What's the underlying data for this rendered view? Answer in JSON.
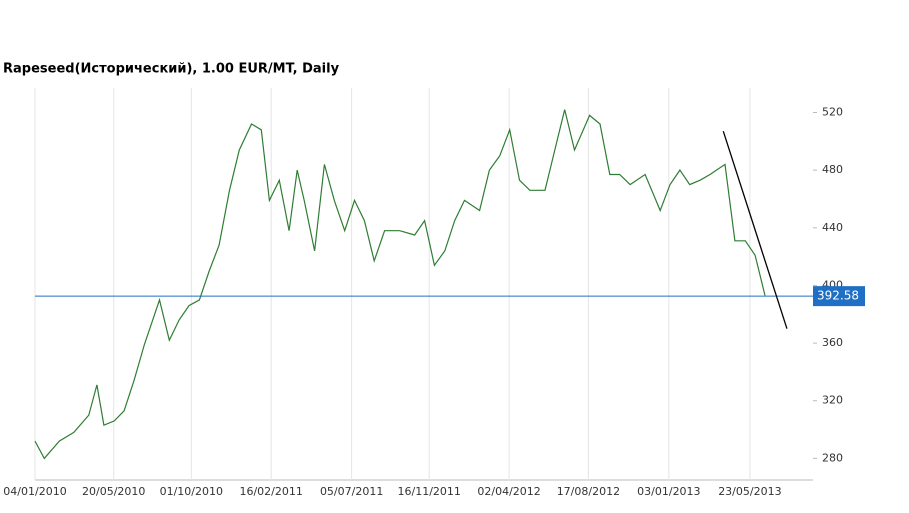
{
  "chart_data": {
    "type": "line",
    "title": "Rapeseed(Исторический), 1.00 EUR/MT, Daily",
    "x": [
      "04/01/2010",
      "20/01/2010",
      "15/02/2010",
      "12/03/2010",
      "07/04/2010",
      "21/04/2010",
      "03/05/2010",
      "21/05/2010",
      "07/06/2010",
      "24/06/2010",
      "12/07/2010",
      "07/08/2010",
      "24/08/2010",
      "10/09/2010",
      "27/09/2010",
      "15/10/2010",
      "01/11/2010",
      "18/11/2010",
      "06/12/2010",
      "23/12/2010",
      "13/01/2011",
      "30/01/2011",
      "13/02/2011",
      "02/03/2011",
      "19/03/2011",
      "02/04/2011",
      "14/04/2011",
      "02/05/2011",
      "19/05/2011",
      "05/06/2011",
      "23/06/2011",
      "10/07/2011",
      "27/07/2011",
      "13/08/2011",
      "31/08/2011",
      "26/09/2011",
      "22/10/2011",
      "08/11/2011",
      "25/11/2011",
      "13/12/2011",
      "30/12/2011",
      "16/01/2012",
      "11/02/2012",
      "28/02/2012",
      "17/03/2012",
      "03/04/2012",
      "20/04/2012",
      "08/05/2012",
      "03/06/2012",
      "20/06/2012",
      "07/07/2012",
      "24/07/2012",
      "19/08/2012",
      "06/09/2012",
      "23/09/2012",
      "10/10/2012",
      "28/10/2012",
      "23/11/2012",
      "19/12/2012",
      "05/01/2013",
      "22/01/2013",
      "08/02/2013",
      "26/02/2013",
      "15/03/2013",
      "10/04/2013",
      "27/04/2013",
      "15/05/2013",
      "01/06/2013",
      "18/06/2013"
    ],
    "series": [
      {
        "color": "#2e7d32",
        "values": [
          292,
          280,
          292,
          298,
          310,
          331,
          303,
          306,
          313,
          334,
          359,
          390,
          362,
          376,
          386,
          390,
          410,
          428,
          466,
          494,
          512,
          508,
          459,
          473,
          438,
          480,
          459,
          424,
          484,
          459,
          438,
          459,
          445,
          417,
          438,
          438,
          435,
          445,
          414,
          424,
          445,
          459,
          452,
          480,
          490,
          508,
          473,
          466,
          466,
          494,
          522,
          494,
          518,
          512,
          477,
          477,
          470,
          477,
          452,
          470,
          480,
          470,
          473,
          477,
          484,
          431,
          431,
          421,
          393
        ]
      }
    ],
    "hline": 392.58,
    "hline_color": "#1f6fc5",
    "trendline": {
      "x": [
        "07/04/2013",
        "26/07/2013"
      ],
      "values": [
        507,
        370
      ]
    },
    "xlim": [
      "04/01/2010",
      "09/09/2013"
    ],
    "xticks": [
      "04/01/2010",
      "20/05/2010",
      "01/10/2010",
      "16/02/2011",
      "05/07/2011",
      "16/11/2011",
      "02/04/2012",
      "17/08/2012",
      "03/01/2013",
      "23/05/2013"
    ],
    "ylim": [
      265,
      537
    ],
    "yticks": [
      280,
      320,
      360,
      400,
      440,
      480,
      520
    ],
    "grid": true
  }
}
